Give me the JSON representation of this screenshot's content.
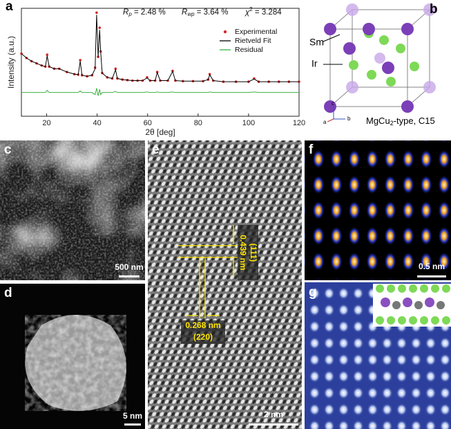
{
  "chart_data": {
    "type": "line",
    "label": "a",
    "xlabel": "2θ [deg]",
    "ylabel": "Intensity (a.u.)",
    "stats": [
      {
        "symbol": "R",
        "sub": "p",
        "rest": " = 2.48 %"
      },
      {
        "symbol": "R",
        "sub": "wp",
        "rest": " = 3.64 %"
      },
      {
        "symbol": "χ",
        "sup": "2",
        "rest": " = 3.284"
      }
    ],
    "x": [
      10,
      12,
      14,
      16,
      18,
      19.5,
      20.2,
      21,
      23,
      25,
      28,
      31,
      32.5,
      33.3,
      34,
      36,
      38,
      39.2,
      39.8,
      40.4,
      41,
      41.4,
      42,
      44,
      46,
      47.3,
      48,
      50,
      52,
      54,
      56,
      58,
      59.8,
      61,
      63,
      63.8,
      65,
      68,
      69.9,
      71,
      74,
      78,
      82,
      84,
      84.6,
      86,
      90,
      95,
      100,
      102.2,
      104,
      108,
      112,
      116,
      120
    ],
    "series": [
      {
        "name": "Experimental",
        "color": "#d62728",
        "style": "markers",
        "values": [
          58,
          54,
          51,
          49,
          47,
          46,
          57,
          46,
          44,
          44,
          41,
          39,
          38.5,
          52,
          38,
          37,
          38,
          45,
          96,
          55,
          82,
          60,
          40,
          36,
          35,
          44,
          35,
          34,
          33.5,
          33,
          33,
          33,
          36,
          33,
          33,
          41,
          33,
          33,
          42,
          33,
          32.5,
          32.5,
          32.5,
          34,
          39,
          33,
          32,
          32,
          32,
          35,
          32,
          32,
          32,
          32,
          32
        ]
      },
      {
        "name": "Rietveld Fit",
        "color": "#000000",
        "style": "line",
        "values": [
          58,
          54,
          51,
          49,
          47,
          46,
          56,
          46,
          44,
          44,
          41,
          39,
          38.5,
          51,
          38,
          37,
          38,
          44,
          94,
          55,
          80,
          60,
          40,
          36,
          35,
          43,
          35,
          34,
          33.5,
          33,
          33,
          33,
          35.5,
          33,
          33,
          40.5,
          33,
          33,
          41.5,
          33,
          32.5,
          32.5,
          32.5,
          34,
          38.5,
          33,
          32,
          32,
          32,
          34.5,
          32,
          32,
          32,
          32,
          32
        ]
      },
      {
        "name": "Residual",
        "color": "#3cb043",
        "style": "line",
        "values": [
          22,
          22,
          22,
          22,
          22,
          22,
          24,
          22,
          22,
          22,
          22,
          22,
          22,
          23.5,
          22,
          22,
          22,
          20,
          26,
          19,
          25,
          20,
          22,
          22,
          22,
          23,
          22,
          22,
          22,
          22,
          22,
          22,
          22.5,
          22,
          22,
          22.5,
          22,
          22,
          22.5,
          22,
          22,
          22,
          22,
          22,
          22.5,
          22,
          22,
          22,
          22,
          22.5,
          22,
          22,
          22,
          22,
          22
        ]
      }
    ],
    "xlim": [
      10,
      120
    ],
    "xticks": [
      20,
      40,
      60,
      80,
      100,
      120
    ],
    "ylim": [
      0,
      100
    ]
  },
  "panels": {
    "b": {
      "label": "b",
      "sites": [
        "Sm",
        "Ir"
      ],
      "axes": [
        "a",
        "b",
        "c"
      ],
      "structure": {
        "formula": "MgCu",
        "sub": "2",
        "rest": "-type, C15"
      }
    },
    "c": {
      "label": "c",
      "scale": "500 nm"
    },
    "d": {
      "label": "d",
      "scale": "5 nm"
    },
    "e": {
      "label": "e",
      "scale": "2 nm",
      "d1": {
        "spacing": "0.439 nm",
        "plane": "(111)"
      },
      "d2": {
        "spacing": "0.268 nm",
        "plane": "(220)"
      }
    },
    "f": {
      "label": "f",
      "scale": "0.5 nm"
    },
    "g": {
      "label": "g"
    }
  }
}
